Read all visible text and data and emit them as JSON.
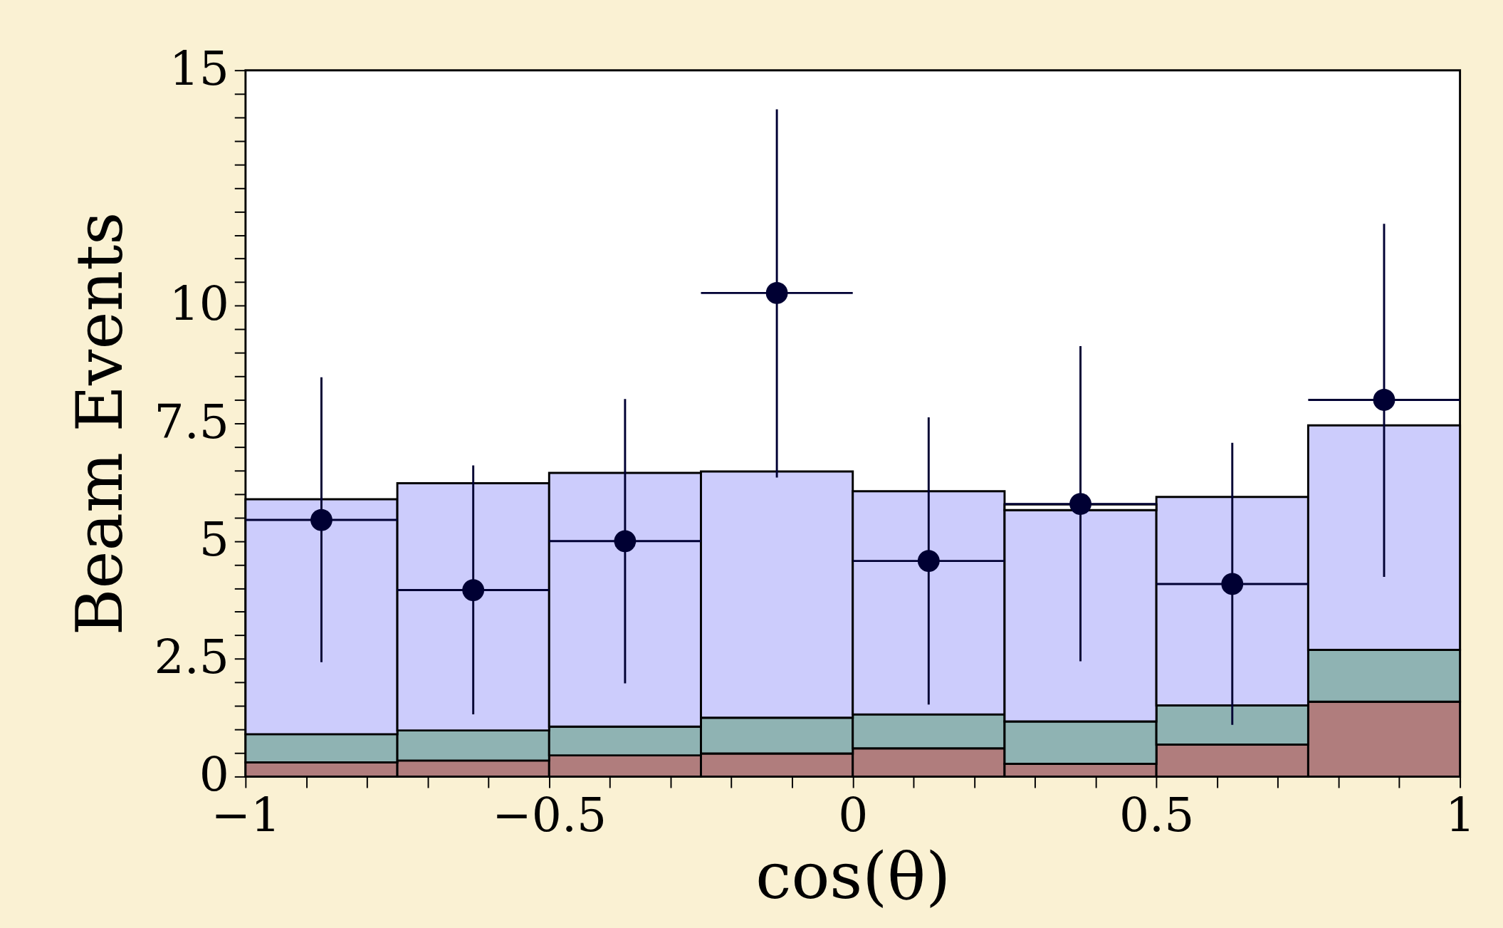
{
  "chart_data": {
    "type": "bar",
    "xlabel": "cos(θ)",
    "ylabel": "Beam Events",
    "stacked": true,
    "x": [
      -0.875,
      -0.625,
      -0.375,
      -0.125,
      0.125,
      0.375,
      0.625,
      0.875
    ],
    "series": [
      {
        "color": "#b07d7d",
        "values": [
          0.3,
          0.34,
          0.45,
          0.49,
          0.6,
          0.27,
          0.68,
          1.59
        ]
      },
      {
        "color": "#8fb3b3",
        "values": [
          0.6,
          0.64,
          0.61,
          0.76,
          0.72,
          0.9,
          0.83,
          1.1
        ]
      },
      {
        "color": "#ccccfc",
        "values": [
          4.99,
          5.25,
          5.39,
          5.23,
          4.74,
          4.49,
          4.43,
          4.77
        ]
      },
      {
        "color": "#ffffff",
        "values": [
          null,
          null,
          null,
          null,
          null,
          0.12,
          null,
          null
        ]
      },
      {
        "type": "scatter",
        "color": "#000033",
        "marker": "circle",
        "x": [
          -0.875,
          -0.625,
          -0.375,
          -0.125,
          0.125,
          0.375,
          0.625,
          0.875
        ],
        "values": [
          5.45,
          3.96,
          5.0,
          10.27,
          4.58,
          5.79,
          4.09,
          8.0
        ],
        "errors": [
          [
            2.43,
            8.48
          ],
          [
            1.32,
            6.61
          ],
          [
            1.98,
            8.02
          ],
          [
            6.35,
            14.17
          ],
          [
            1.53,
            7.63
          ],
          [
            2.45,
            9.14
          ],
          [
            1.1,
            7.09
          ],
          [
            4.24,
            11.74
          ]
        ],
        "xerrors": [
          0.125,
          0.125,
          0.125,
          0.125,
          0.125,
          0.125,
          0.125,
          0.125
        ]
      }
    ],
    "xlim": [
      -1,
      1
    ],
    "ylim": [
      0,
      15
    ],
    "xticks": [
      {
        "value": -1,
        "label": "−1"
      },
      {
        "value": -0.9,
        "label": null
      },
      {
        "value": -0.8,
        "label": null
      },
      {
        "value": -0.7,
        "label": null
      },
      {
        "value": -0.6,
        "label": null
      },
      {
        "value": -0.5,
        "label": "−0.5"
      },
      {
        "value": -0.4,
        "label": null
      },
      {
        "value": -0.3,
        "label": null
      },
      {
        "value": -0.2,
        "label": null
      },
      {
        "value": -0.1,
        "label": null
      },
      0,
      {
        "value": 0.1,
        "label": null
      },
      {
        "value": 0.2,
        "label": null
      },
      {
        "value": 0.3,
        "label": null
      },
      {
        "value": 0.4,
        "label": null
      },
      0.5,
      {
        "value": 0.6,
        "label": null
      },
      {
        "value": 0.7,
        "label": null
      },
      {
        "value": 0.8,
        "label": null
      },
      {
        "value": 0.9,
        "label": null
      },
      1
    ],
    "yticks": [
      0,
      {
        "value": 0.5,
        "label": null
      },
      {
        "value": 1,
        "label": null
      },
      {
        "value": 1.5,
        "label": null
      },
      {
        "value": 2,
        "label": null
      },
      2.5,
      {
        "value": 3,
        "label": null
      },
      {
        "value": 3.5,
        "label": null
      },
      {
        "value": 4,
        "label": null
      },
      {
        "value": 4.5,
        "label": null
      },
      5,
      {
        "value": 5.5,
        "label": null
      },
      {
        "value": 6,
        "label": null
      },
      {
        "value": 6.5,
        "label": null
      },
      {
        "value": 7,
        "label": null
      },
      7.5,
      {
        "value": 8,
        "label": null
      },
      {
        "value": 8.5,
        "label": null
      },
      {
        "value": 9,
        "label": null
      },
      {
        "value": 9.5,
        "label": null
      },
      10,
      {
        "value": 10.5,
        "label": null
      },
      {
        "value": 11,
        "label": null
      },
      {
        "value": 11.5,
        "label": null
      },
      {
        "value": 12,
        "label": null
      },
      {
        "value": 12.5,
        "label": null
      },
      {
        "value": 13,
        "label": null
      },
      {
        "value": 13.5,
        "label": null
      },
      {
        "value": 14,
        "label": null
      },
      {
        "value": 14.5,
        "label": null
      },
      15
    ],
    "grid": false,
    "legend": false
  }
}
